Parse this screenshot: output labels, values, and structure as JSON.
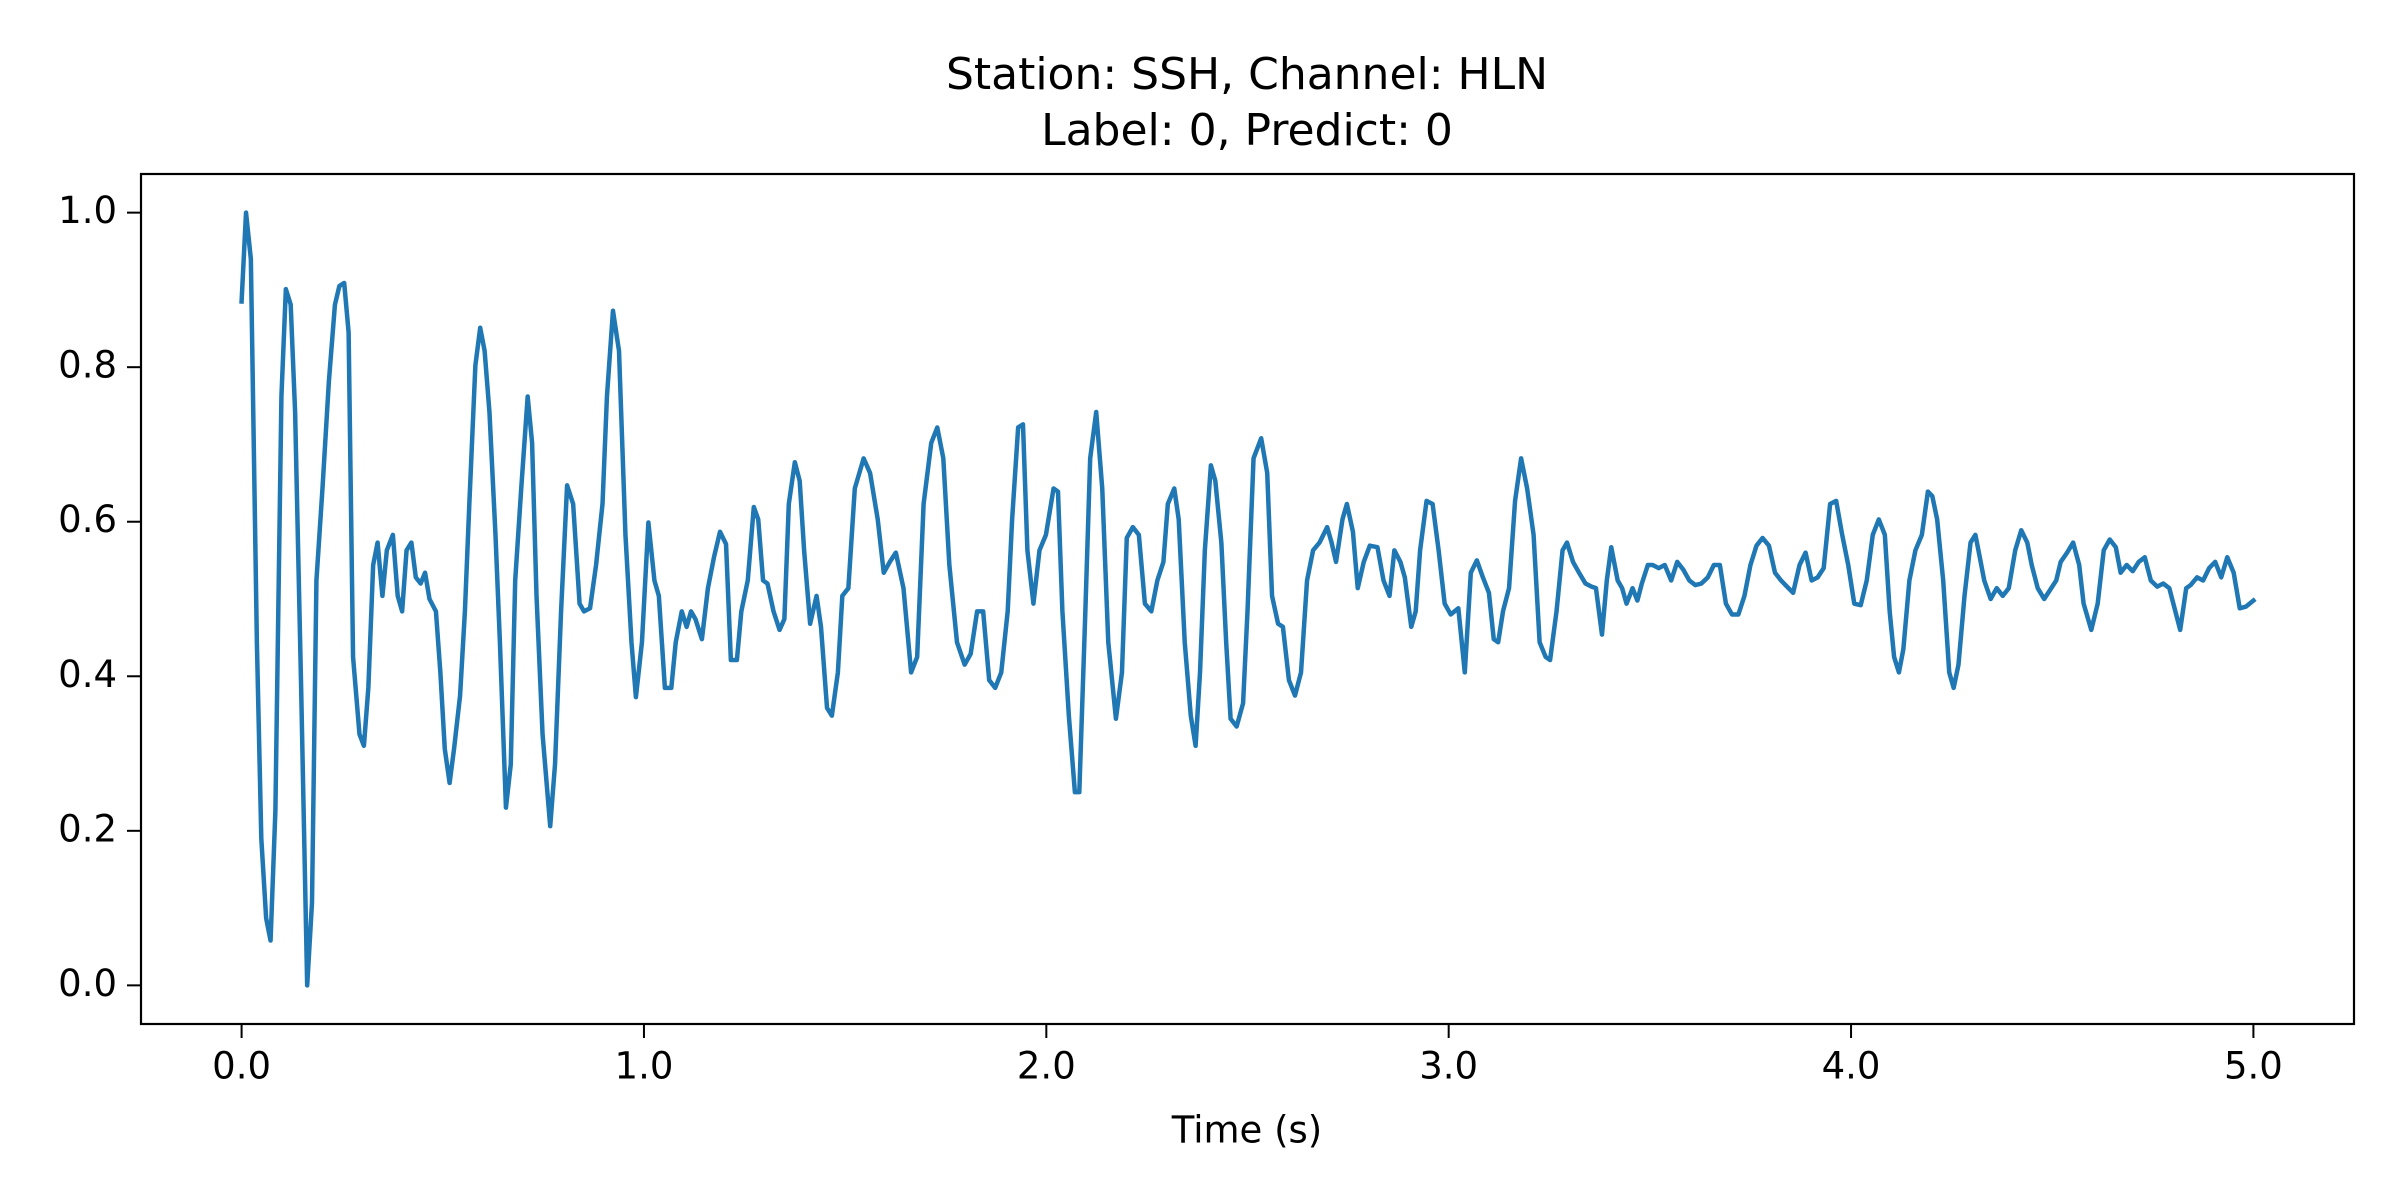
{
  "chart_data": {
    "type": "line",
    "title": "Station: SSH, Channel: HLN",
    "subtitle": "Label: 0, Predict: 0",
    "x_label": "Time (s)",
    "color": "#1f77b4",
    "xlim": [
      -0.25,
      5.25
    ],
    "ylim": [
      -0.05,
      1.05
    ],
    "xticks": [
      {
        "value": 0,
        "label": "0.0"
      },
      {
        "value": 1,
        "label": "1.0"
      },
      {
        "value": 2,
        "label": "2.0"
      },
      {
        "value": 3,
        "label": "3.0"
      },
      {
        "value": 4,
        "label": "4.0"
      },
      {
        "value": 5,
        "label": "5.0"
      }
    ],
    "yticks": [
      {
        "value": 0,
        "label": "0.0"
      },
      0.2,
      0.4,
      0.6,
      0.8,
      {
        "value": 1,
        "label": "1.0"
      }
    ],
    "grid": false,
    "x": [
      0,
      0.011,
      0.023,
      0.038,
      0.049,
      0.061,
      0.072,
      0.084,
      0.099,
      0.11,
      0.122,
      0.133,
      0.148,
      0.163,
      0.175,
      0.186,
      0.201,
      0.217,
      0.232,
      0.243,
      0.255,
      0.266,
      0.277,
      0.293,
      0.304,
      0.315,
      0.327,
      0.338,
      0.35,
      0.361,
      0.376,
      0.388,
      0.399,
      0.41,
      0.422,
      0.433,
      0.445,
      0.456,
      0.467,
      0.483,
      0.494,
      0.505,
      0.517,
      0.528,
      0.543,
      0.555,
      0.566,
      0.581,
      0.593,
      0.604,
      0.616,
      0.631,
      0.642,
      0.657,
      0.669,
      0.68,
      0.695,
      0.711,
      0.722,
      0.733,
      0.748,
      0.767,
      0.779,
      0.794,
      0.809,
      0.824,
      0.84,
      0.851,
      0.866,
      0.881,
      0.897,
      0.908,
      0.923,
      0.938,
      0.954,
      0.969,
      0.98,
      0.995,
      1.011,
      1.026,
      1.037,
      1.052,
      1.068,
      1.079,
      1.094,
      1.106,
      1.117,
      1.128,
      1.144,
      1.159,
      1.174,
      1.189,
      1.204,
      1.216,
      1.231,
      1.242,
      1.258,
      1.273,
      1.284,
      1.296,
      1.307,
      1.322,
      1.337,
      1.349,
      1.36,
      1.375,
      1.387,
      1.398,
      1.413,
      1.429,
      1.44,
      1.455,
      1.467,
      1.482,
      1.493,
      1.508,
      1.524,
      1.546,
      1.562,
      1.581,
      1.596,
      1.611,
      1.626,
      1.645,
      1.664,
      1.679,
      1.695,
      1.714,
      1.729,
      1.744,
      1.759,
      1.778,
      1.797,
      1.812,
      1.828,
      1.843,
      1.858,
      1.873,
      1.888,
      1.904,
      1.915,
      1.93,
      1.942,
      1.953,
      1.968,
      1.983,
      1.999,
      2.018,
      2.029,
      2.04,
      2.056,
      2.071,
      2.082,
      2.097,
      2.109,
      2.124,
      2.139,
      2.154,
      2.173,
      2.188,
      2.2,
      2.215,
      2.23,
      2.245,
      2.261,
      2.276,
      2.291,
      2.302,
      2.318,
      2.329,
      2.344,
      2.359,
      2.371,
      2.382,
      2.394,
      2.409,
      2.42,
      2.435,
      2.447,
      2.458,
      2.473,
      2.489,
      2.5,
      2.515,
      2.534,
      2.549,
      2.561,
      2.576,
      2.588,
      2.603,
      2.618,
      2.633,
      2.648,
      2.663,
      2.679,
      2.698,
      2.709,
      2.72,
      2.736,
      2.747,
      2.762,
      2.774,
      2.789,
      2.804,
      2.823,
      2.838,
      2.853,
      2.865,
      2.88,
      2.891,
      2.907,
      2.918,
      2.929,
      2.945,
      2.96,
      2.975,
      2.99,
      3.005,
      3.024,
      3.04,
      3.055,
      3.07,
      3.085,
      3.1,
      3.112,
      3.123,
      3.135,
      3.15,
      3.165,
      3.18,
      3.195,
      3.211,
      3.226,
      3.241,
      3.252,
      3.268,
      3.283,
      3.294,
      3.309,
      3.324,
      3.34,
      3.355,
      3.366,
      3.381,
      3.393,
      3.404,
      3.42,
      3.431,
      3.442,
      3.457,
      3.469,
      3.48,
      3.495,
      3.507,
      3.522,
      3.537,
      3.553,
      3.568,
      3.583,
      3.598,
      3.613,
      3.628,
      3.644,
      3.659,
      3.674,
      3.689,
      3.704,
      3.72,
      3.735,
      3.75,
      3.765,
      3.78,
      3.796,
      3.811,
      3.826,
      3.841,
      3.856,
      3.872,
      3.887,
      3.902,
      3.917,
      3.932,
      3.948,
      3.963,
      3.978,
      3.993,
      4.008,
      4.024,
      4.039,
      4.054,
      4.069,
      4.084,
      4.096,
      4.107,
      4.119,
      4.13,
      4.145,
      4.16,
      4.176,
      4.191,
      4.202,
      4.214,
      4.229,
      4.244,
      4.255,
      4.267,
      4.282,
      4.297,
      4.309,
      4.32,
      4.331,
      4.347,
      4.362,
      4.377,
      4.392,
      4.408,
      4.423,
      4.438,
      4.449,
      4.464,
      4.48,
      4.495,
      4.51,
      4.521,
      4.537,
      4.552,
      4.567,
      4.578,
      4.597,
      4.613,
      4.628,
      4.643,
      4.658,
      4.67,
      4.685,
      4.7,
      4.715,
      4.73,
      4.745,
      4.761,
      4.776,
      4.791,
      4.806,
      4.818,
      4.833,
      4.844,
      4.86,
      4.875,
      4.89,
      4.905,
      4.92,
      4.935,
      4.951,
      4.966,
      4.981,
      5.0
    ],
    "values": [
      0.885,
      1,
      0.94,
      0.444,
      0.19,
      0.087,
      0.058,
      0.226,
      0.762,
      0.901,
      0.881,
      0.742,
      0.385,
      0,
      0.107,
      0.524,
      0.643,
      0.782,
      0.881,
      0.905,
      0.909,
      0.845,
      0.425,
      0.325,
      0.31,
      0.385,
      0.544,
      0.573,
      0.504,
      0.563,
      0.583,
      0.504,
      0.484,
      0.563,
      0.573,
      0.528,
      0.52,
      0.534,
      0.5,
      0.484,
      0.405,
      0.306,
      0.262,
      0.306,
      0.375,
      0.484,
      0.623,
      0.802,
      0.851,
      0.821,
      0.742,
      0.583,
      0.444,
      0.23,
      0.286,
      0.524,
      0.643,
      0.762,
      0.702,
      0.504,
      0.325,
      0.206,
      0.286,
      0.484,
      0.647,
      0.623,
      0.494,
      0.484,
      0.488,
      0.544,
      0.623,
      0.762,
      0.873,
      0.821,
      0.583,
      0.444,
      0.373,
      0.444,
      0.599,
      0.524,
      0.504,
      0.385,
      0.385,
      0.444,
      0.484,
      0.464,
      0.484,
      0.474,
      0.448,
      0.514,
      0.554,
      0.587,
      0.571,
      0.421,
      0.421,
      0.484,
      0.524,
      0.619,
      0.603,
      0.524,
      0.52,
      0.484,
      0.46,
      0.474,
      0.623,
      0.677,
      0.653,
      0.563,
      0.468,
      0.504,
      0.464,
      0.359,
      0.349,
      0.405,
      0.504,
      0.514,
      0.643,
      0.682,
      0.663,
      0.603,
      0.534,
      0.548,
      0.56,
      0.514,
      0.405,
      0.425,
      0.623,
      0.702,
      0.722,
      0.682,
      0.544,
      0.444,
      0.415,
      0.429,
      0.484,
      0.484,
      0.395,
      0.385,
      0.405,
      0.484,
      0.603,
      0.722,
      0.726,
      0.563,
      0.494,
      0.563,
      0.583,
      0.643,
      0.639,
      0.484,
      0.349,
      0.25,
      0.25,
      0.484,
      0.682,
      0.742,
      0.643,
      0.444,
      0.345,
      0.405,
      0.579,
      0.593,
      0.583,
      0.494,
      0.484,
      0.524,
      0.548,
      0.623,
      0.643,
      0.603,
      0.444,
      0.349,
      0.31,
      0.405,
      0.563,
      0.673,
      0.653,
      0.573,
      0.444,
      0.345,
      0.335,
      0.365,
      0.484,
      0.682,
      0.708,
      0.663,
      0.504,
      0.468,
      0.464,
      0.395,
      0.375,
      0.405,
      0.524,
      0.563,
      0.573,
      0.593,
      0.573,
      0.548,
      0.603,
      0.623,
      0.587,
      0.514,
      0.548,
      0.569,
      0.567,
      0.524,
      0.504,
      0.563,
      0.548,
      0.528,
      0.464,
      0.484,
      0.563,
      0.627,
      0.623,
      0.563,
      0.494,
      0.48,
      0.488,
      0.405,
      0.534,
      0.55,
      0.528,
      0.508,
      0.448,
      0.444,
      0.484,
      0.514,
      0.627,
      0.682,
      0.643,
      0.583,
      0.444,
      0.425,
      0.421,
      0.484,
      0.563,
      0.573,
      0.548,
      0.534,
      0.52,
      0.516,
      0.514,
      0.454,
      0.524,
      0.567,
      0.524,
      0.514,
      0.494,
      0.514,
      0.498,
      0.52,
      0.544,
      0.544,
      0.54,
      0.544,
      0.524,
      0.548,
      0.538,
      0.524,
      0.518,
      0.52,
      0.528,
      0.544,
      0.544,
      0.494,
      0.48,
      0.48,
      0.504,
      0.544,
      0.569,
      0.579,
      0.569,
      0.534,
      0.524,
      0.516,
      0.508,
      0.544,
      0.56,
      0.524,
      0.528,
      0.54,
      0.623,
      0.627,
      0.583,
      0.544,
      0.494,
      0.492,
      0.524,
      0.583,
      0.603,
      0.583,
      0.484,
      0.425,
      0.405,
      0.435,
      0.524,
      0.563,
      0.583,
      0.639,
      0.633,
      0.603,
      0.524,
      0.405,
      0.385,
      0.415,
      0.504,
      0.573,
      0.583,
      0.554,
      0.524,
      0.5,
      0.514,
      0.504,
      0.514,
      0.563,
      0.589,
      0.573,
      0.544,
      0.514,
      0.5,
      0.512,
      0.524,
      0.548,
      0.56,
      0.573,
      0.544,
      0.494,
      0.46,
      0.494,
      0.563,
      0.577,
      0.567,
      0.534,
      0.544,
      0.536,
      0.548,
      0.554,
      0.524,
      0.516,
      0.52,
      0.514,
      0.484,
      0.46,
      0.514,
      0.518,
      0.528,
      0.524,
      0.54,
      0.548,
      0.528,
      0.554,
      0.534,
      0.488,
      0.49,
      0.498
    ]
  }
}
